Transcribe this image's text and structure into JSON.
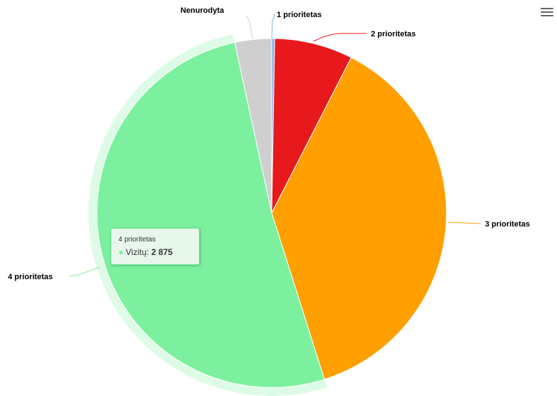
{
  "chart_data": {
    "type": "pie",
    "series_name": "Vizitų",
    "slices": [
      {
        "name": "1 prioritetas",
        "value": 15,
        "color": "#7cb5ec"
      },
      {
        "name": "2 prioritetas",
        "value": 405,
        "color": "#e8191d"
      },
      {
        "name": "3 prioritetas",
        "value": 2100,
        "color": "#ff9f00"
      },
      {
        "name": "4 prioritetas",
        "value": 2875,
        "color": "#7cf09e"
      },
      {
        "name": "Nenurodyta",
        "value": 190,
        "color": "#cfcfcf"
      }
    ],
    "hovered_slice": "4 prioritetas",
    "legend": "none"
  },
  "tooltip": {
    "header": "4 prioritetas",
    "series_label": "Vizitų:",
    "value_text": "2 875"
  },
  "menu": {
    "icon": "hamburger-menu-icon"
  }
}
